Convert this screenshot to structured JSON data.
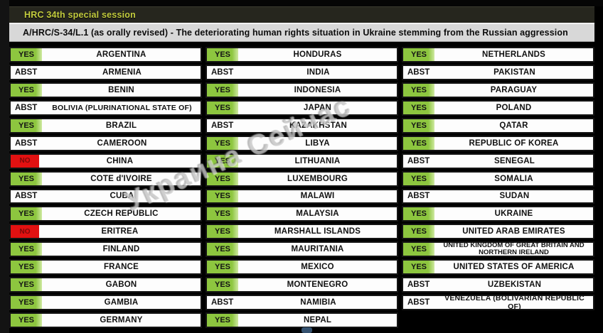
{
  "header": {
    "session_title": "HRC 34th special session",
    "resolution_title": "A/HRC/S-34/L.1 (as orally revised) - The deteriorating human rights situation in Ukraine stemming from the Russian aggression"
  },
  "overlay": {
    "watermark": "Украина Сейчас"
  },
  "votes": {
    "colors": {
      "yes": "#8dc63f",
      "no": "#e21111",
      "abstain_text": "#000000",
      "header_text": "#c3cc3e"
    },
    "labels": {
      "yes": "YES",
      "no": "NO",
      "abstain": "ABST"
    },
    "columns": [
      [
        {
          "vote": "YES",
          "country": "ARGENTINA"
        },
        {
          "vote": "ABST",
          "country": "ARMENIA"
        },
        {
          "vote": "YES",
          "country": "BENIN"
        },
        {
          "vote": "ABST",
          "country": "BOLIVIA (PLURINATIONAL STATE OF)"
        },
        {
          "vote": "YES",
          "country": "BRAZIL"
        },
        {
          "vote": "ABST",
          "country": "CAMEROON"
        },
        {
          "vote": "NO",
          "country": "CHINA"
        },
        {
          "vote": "YES",
          "country": "COTE d'IVOIRE"
        },
        {
          "vote": "ABST",
          "country": "CUBA"
        },
        {
          "vote": "YES",
          "country": "CZECH REPUBLIC"
        },
        {
          "vote": "NO",
          "country": "ERITREA"
        },
        {
          "vote": "YES",
          "country": "FINLAND"
        },
        {
          "vote": "YES",
          "country": "FRANCE"
        },
        {
          "vote": "YES",
          "country": "GABON"
        },
        {
          "vote": "YES",
          "country": "GAMBIA"
        },
        {
          "vote": "YES",
          "country": "GERMANY"
        }
      ],
      [
        {
          "vote": "YES",
          "country": "HONDURAS"
        },
        {
          "vote": "ABST",
          "country": "INDIA"
        },
        {
          "vote": "YES",
          "country": "INDONESIA"
        },
        {
          "vote": "YES",
          "country": "JAPAN"
        },
        {
          "vote": "ABST",
          "country": "KAZAKHSTAN"
        },
        {
          "vote": "YES",
          "country": "LIBYA"
        },
        {
          "vote": "YES",
          "country": "LITHUANIA"
        },
        {
          "vote": "YES",
          "country": "LUXEMBOURG"
        },
        {
          "vote": "YES",
          "country": "MALAWI"
        },
        {
          "vote": "YES",
          "country": "MALAYSIA"
        },
        {
          "vote": "YES",
          "country": "MARSHALL ISLANDS"
        },
        {
          "vote": "YES",
          "country": "MAURITANIA"
        },
        {
          "vote": "YES",
          "country": "MEXICO"
        },
        {
          "vote": "YES",
          "country": "MONTENEGRO"
        },
        {
          "vote": "ABST",
          "country": "NAMIBIA"
        },
        {
          "vote": "YES",
          "country": "NEPAL"
        }
      ],
      [
        {
          "vote": "YES",
          "country": "NETHERLANDS"
        },
        {
          "vote": "ABST",
          "country": "PAKISTAN"
        },
        {
          "vote": "YES",
          "country": "PARAGUAY"
        },
        {
          "vote": "YES",
          "country": "POLAND"
        },
        {
          "vote": "YES",
          "country": "QATAR"
        },
        {
          "vote": "YES",
          "country": "REPUBLIC OF KOREA"
        },
        {
          "vote": "ABST",
          "country": "SENEGAL"
        },
        {
          "vote": "YES",
          "country": "SOMALIA"
        },
        {
          "vote": "ABST",
          "country": "SUDAN"
        },
        {
          "vote": "YES",
          "country": "UKRAINE"
        },
        {
          "vote": "YES",
          "country": "UNITED ARAB EMIRATES"
        },
        {
          "vote": "YES",
          "country": "UNITED KINGDOM OF GREAT BRITAIN AND NORTHERN IRELAND"
        },
        {
          "vote": "YES",
          "country": "UNITED STATES OF AMERICA"
        },
        {
          "vote": "ABST",
          "country": "UZBEKISTAN"
        },
        {
          "vote": "ABST",
          "country": "VENEZUELA (BOLIVARIAN REPUBLIC OF)"
        },
        null
      ]
    ]
  }
}
